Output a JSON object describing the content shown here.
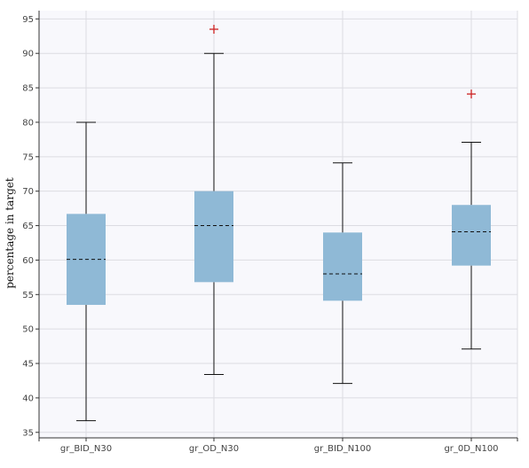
{
  "chart_data": {
    "type": "box",
    "ylabel": "percentage in target",
    "xlabel": "",
    "ylim": [
      34.2,
      96.2
    ],
    "yticks": [
      35,
      40,
      45,
      50,
      55,
      60,
      65,
      70,
      75,
      80,
      85,
      90,
      95
    ],
    "grid": true,
    "categories": [
      "gr_BID_N30",
      "gr_OD_N30",
      "gr_BID_N100",
      "gr_0D_N100"
    ],
    "boxes": [
      {
        "whisker_low": 36.7,
        "q1": 53.5,
        "median": 60.1,
        "q3": 66.7,
        "whisker_high": 80.0,
        "outliers": []
      },
      {
        "whisker_low": 43.4,
        "q1": 56.8,
        "median": 65.0,
        "q3": 70.0,
        "whisker_high": 90.0,
        "outliers": [
          93.5
        ]
      },
      {
        "whisker_low": 42.1,
        "q1": 54.1,
        "median": 58.0,
        "q3": 64.0,
        "whisker_high": 74.1,
        "outliers": []
      },
      {
        "whisker_low": 47.1,
        "q1": 59.2,
        "median": 64.1,
        "q3": 68.0,
        "whisker_high": 77.1,
        "outliers": [
          84.1
        ]
      }
    ],
    "colors": {
      "box_fill": "#8fb9d6",
      "median": "#111111",
      "whisker": "#111111",
      "outlier": "#cc2222",
      "grid": "#dcdce2",
      "plot_bg": "#f8f8fc"
    }
  }
}
